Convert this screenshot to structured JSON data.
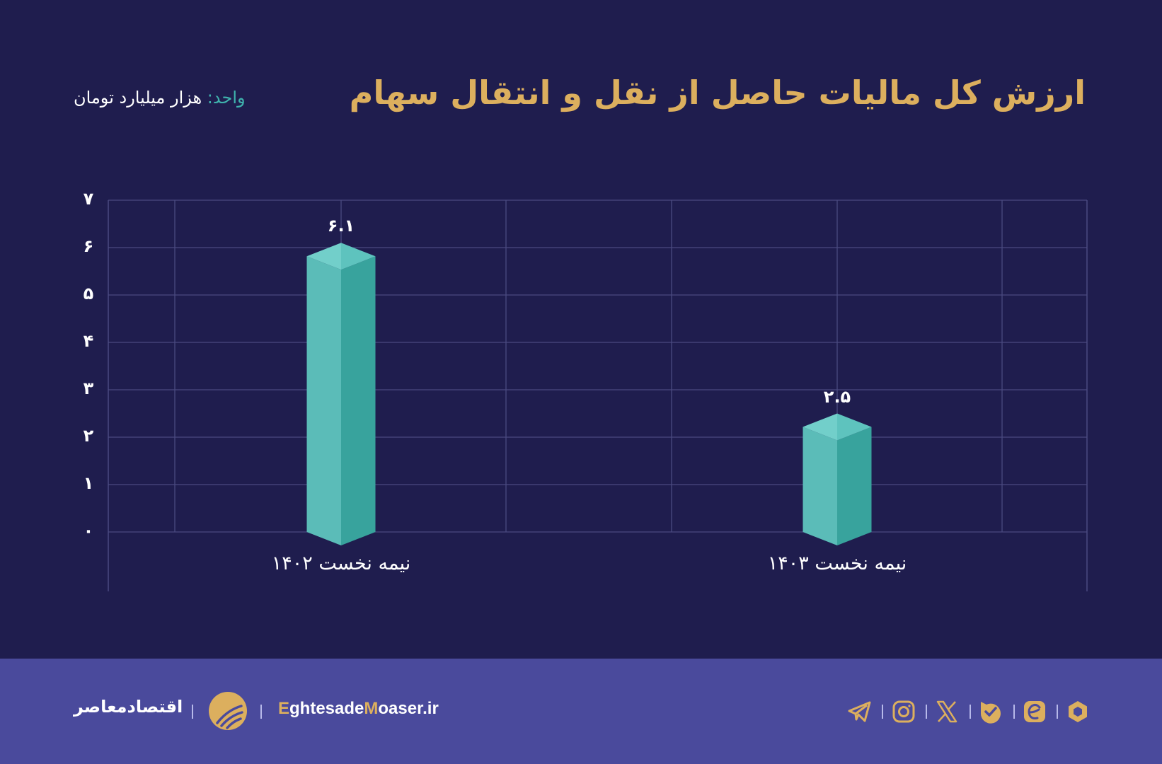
{
  "header": {
    "title": "ارزش کل مالیات حاصل از نقل و انتقال سهام",
    "unit_label": "واحد:",
    "unit_value": " هزار میلیارد تومان"
  },
  "chart_data": {
    "type": "bar",
    "title": "ارزش کل مالیات حاصل از نقل و انتقال سهام",
    "unit": "هزار میلیارد تومان",
    "categories": [
      "نیمه نخست ۱۴۰۲",
      "نیمه نخست ۱۴۰۳"
    ],
    "values": [
      6.1,
      2.5
    ],
    "value_labels": [
      "۶.۱",
      "۲.۵"
    ],
    "xlabel": "",
    "ylabel": "",
    "ylim": [
      0,
      7
    ],
    "yticks": [
      0,
      1,
      2,
      3,
      4,
      5,
      6,
      7
    ],
    "ytick_labels": [
      "۰",
      "۱",
      "۲",
      "۳",
      "۴",
      "۵",
      "۶",
      "۷"
    ],
    "grid": true,
    "legend": "none",
    "bar_style": "3d-prism",
    "colors": {
      "bar_left": "#5bbcb8",
      "bar_right": "#38a39d",
      "bar_top_left": "#72cfca",
      "bar_top_right": "#5ec3be",
      "grid": "#4a4a80",
      "title": "#dcaf5e",
      "background": "#1f1d4e"
    }
  },
  "footer": {
    "brand_fa": "اقتصادمعاصر",
    "site_parts": [
      "E",
      "ghtesade",
      "M",
      "oaser.ir"
    ],
    "social": [
      {
        "name": "telegram"
      },
      {
        "name": "instagram"
      },
      {
        "name": "x"
      },
      {
        "name": "bale"
      },
      {
        "name": "eitaa"
      },
      {
        "name": "rubika"
      }
    ],
    "background": "#4a4a9c",
    "accent": "#dcaf5e"
  }
}
